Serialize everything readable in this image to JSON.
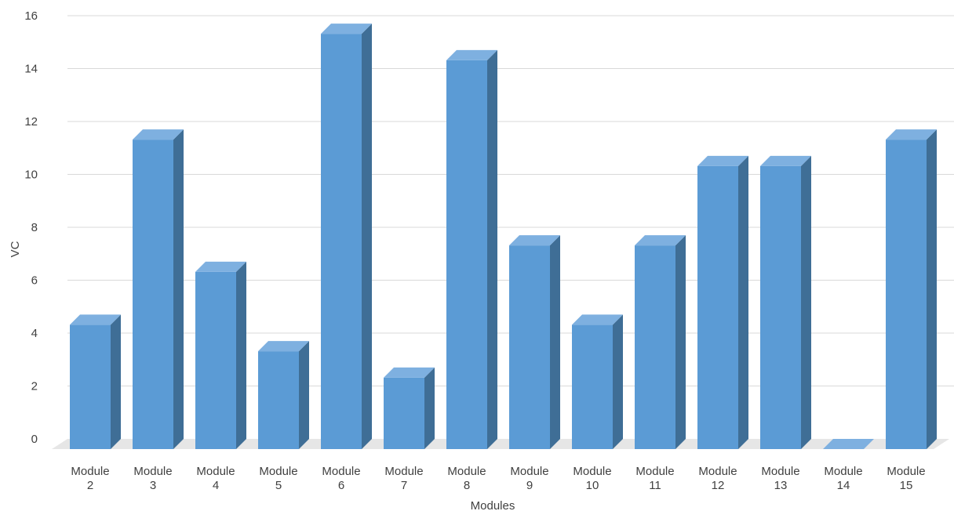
{
  "chart_data": {
    "type": "bar",
    "style": "3d-column",
    "title": "",
    "xlabel": "Modules",
    "ylabel": "VC",
    "ylim": [
      0,
      16
    ],
    "yticks": [
      "0",
      "2",
      "4",
      "6",
      "8",
      "10",
      "12",
      "14",
      "16"
    ],
    "grid": true,
    "legend": "none",
    "categories": [
      [
        "Module",
        "2"
      ],
      [
        "Module",
        "3"
      ],
      [
        "Module",
        "4"
      ],
      [
        "Module",
        "5"
      ],
      [
        "Module",
        "6"
      ],
      [
        "Module",
        "7"
      ],
      [
        "Module",
        "8"
      ],
      [
        "Module",
        "9"
      ],
      [
        "Module",
        "10"
      ],
      [
        "Module",
        "11"
      ],
      [
        "Module",
        "12"
      ],
      [
        "Module",
        "13"
      ],
      [
        "Module",
        "14"
      ],
      [
        "Module",
        "15"
      ]
    ],
    "series": [
      {
        "values": [
          4.7,
          11.7,
          6.7,
          3.7,
          15.7,
          2.7,
          14.7,
          7.7,
          4.7,
          7.7,
          10.7,
          10.7,
          0,
          11.7
        ]
      }
    ],
    "colors": {
      "front": "#5B9BD5",
      "top": "#7EB0E0",
      "side": "#3F6E96",
      "grid": "#D9D9D9",
      "floor": "#E6E6E6"
    }
  }
}
